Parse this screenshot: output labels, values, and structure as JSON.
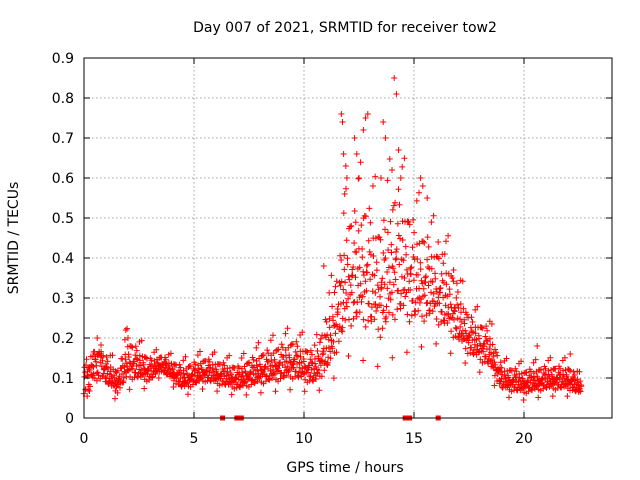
{
  "chart_data": {
    "type": "scatter",
    "title": "Day 007 of 2021, SRMTID for receiver tow2",
    "xlabel": "GPS time / hours",
    "ylabel": "SRMTID / TECUs",
    "xlim": [
      0,
      24
    ],
    "ylim": [
      0,
      0.9
    ],
    "xticks": [
      0,
      5,
      10,
      15,
      20
    ],
    "xtick_labels": [
      "0",
      "5",
      "10",
      "15",
      "20"
    ],
    "yticks": [
      0,
      0.1,
      0.2,
      0.3,
      0.4,
      0.5,
      0.6,
      0.7,
      0.8,
      0.9
    ],
    "ytick_labels": [
      "0",
      "0.1",
      "0.2",
      "0.3",
      "0.4",
      "0.5",
      "0.6",
      "0.7",
      "0.8",
      "0.9"
    ],
    "grid": true,
    "series": [
      {
        "name": "SRMTID",
        "marker": "+",
        "color": "#ff0000",
        "envelope": [
          {
            "x": 0.0,
            "y": 0.1,
            "spread": 0.03
          },
          {
            "x": 0.6,
            "y": 0.13,
            "spread": 0.04
          },
          {
            "x": 1.5,
            "y": 0.08,
            "spread": 0.03
          },
          {
            "x": 2.0,
            "y": 0.13,
            "spread": 0.05
          },
          {
            "x": 3.0,
            "y": 0.11,
            "spread": 0.03
          },
          {
            "x": 3.5,
            "y": 0.13,
            "spread": 0.02
          },
          {
            "x": 4.5,
            "y": 0.09,
            "spread": 0.03
          },
          {
            "x": 5.5,
            "y": 0.11,
            "spread": 0.03
          },
          {
            "x": 7.0,
            "y": 0.09,
            "spread": 0.03
          },
          {
            "x": 8.0,
            "y": 0.11,
            "spread": 0.04
          },
          {
            "x": 9.5,
            "y": 0.13,
            "spread": 0.05
          },
          {
            "x": 10.5,
            "y": 0.11,
            "spread": 0.04
          },
          {
            "x": 11.2,
            "y": 0.18,
            "spread": 0.08
          },
          {
            "x": 12.0,
            "y": 0.32,
            "spread": 0.14
          },
          {
            "x": 12.8,
            "y": 0.33,
            "spread": 0.16
          },
          {
            "x": 13.5,
            "y": 0.29,
            "spread": 0.14
          },
          {
            "x": 14.2,
            "y": 0.36,
            "spread": 0.17
          },
          {
            "x": 15.0,
            "y": 0.32,
            "spread": 0.13
          },
          {
            "x": 15.8,
            "y": 0.31,
            "spread": 0.1
          },
          {
            "x": 16.6,
            "y": 0.27,
            "spread": 0.09
          },
          {
            "x": 17.5,
            "y": 0.19,
            "spread": 0.05
          },
          {
            "x": 18.4,
            "y": 0.16,
            "spread": 0.05
          },
          {
            "x": 19.0,
            "y": 0.09,
            "spread": 0.03
          },
          {
            "x": 20.0,
            "y": 0.08,
            "spread": 0.03
          },
          {
            "x": 21.0,
            "y": 0.09,
            "spread": 0.03
          },
          {
            "x": 22.0,
            "y": 0.09,
            "spread": 0.03
          },
          {
            "x": 22.6,
            "y": 0.07,
            "spread": 0.02
          }
        ],
        "extremes": [
          {
            "x": 0.6,
            "y": 0.2
          },
          {
            "x": 1.9,
            "y": 0.22
          },
          {
            "x": 2.0,
            "y": 0.2
          },
          {
            "x": 10.9,
            "y": 0.38
          },
          {
            "x": 11.7,
            "y": 0.76
          },
          {
            "x": 11.75,
            "y": 0.74
          },
          {
            "x": 11.8,
            "y": 0.66
          },
          {
            "x": 11.9,
            "y": 0.63
          },
          {
            "x": 11.95,
            "y": 0.6
          },
          {
            "x": 11.85,
            "y": 0.56
          },
          {
            "x": 12.3,
            "y": 0.7
          },
          {
            "x": 12.4,
            "y": 0.66
          },
          {
            "x": 12.5,
            "y": 0.6
          },
          {
            "x": 12.8,
            "y": 0.75
          },
          {
            "x": 12.9,
            "y": 0.76
          },
          {
            "x": 12.7,
            "y": 0.72
          },
          {
            "x": 13.6,
            "y": 0.74
          },
          {
            "x": 13.7,
            "y": 0.7
          },
          {
            "x": 13.5,
            "y": 0.6
          },
          {
            "x": 14.1,
            "y": 0.85
          },
          {
            "x": 14.2,
            "y": 0.81
          },
          {
            "x": 14.3,
            "y": 0.67
          },
          {
            "x": 14.0,
            "y": 0.62
          },
          {
            "x": 14.4,
            "y": 0.6
          },
          {
            "x": 15.3,
            "y": 0.6
          },
          {
            "x": 15.4,
            "y": 0.58
          },
          {
            "x": 15.6,
            "y": 0.55
          },
          {
            "x": 16.1,
            "y": 0.44
          },
          {
            "x": 16.4,
            "y": 0.41
          },
          {
            "x": 16.8,
            "y": 0.37
          },
          {
            "x": 20.6,
            "y": 0.18
          },
          {
            "x": 22.1,
            "y": 0.16
          }
        ],
        "zeros": [
          6.3,
          6.95,
          7.05,
          7.1,
          7.15,
          14.6,
          14.7,
          14.75,
          14.8,
          16.1
        ]
      }
    ]
  }
}
